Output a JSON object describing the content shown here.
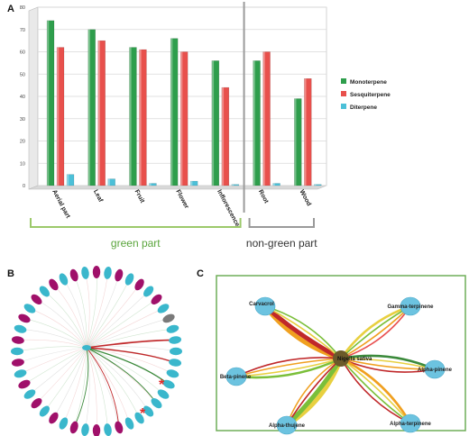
{
  "panels": {
    "a": "A",
    "b": "B",
    "c": "C"
  },
  "chart_data": {
    "type": "bar",
    "categories": [
      "Aerial part",
      "Leaf",
      "Fruit",
      "Flower",
      "Inflorescence",
      "Root",
      "Wood"
    ],
    "series": [
      {
        "name": "Monoterpene",
        "color": "#2e9e4c",
        "values": [
          74,
          70,
          62,
          66,
          56,
          56,
          39
        ]
      },
      {
        "name": "Sesquiterpene",
        "color": "#e8504c",
        "values": [
          62,
          65,
          61,
          60,
          44,
          60,
          48
        ]
      },
      {
        "name": "Diterpene",
        "color": "#4cc0d8",
        "values": [
          5,
          3,
          1,
          2,
          0.5,
          1,
          0.5
        ]
      }
    ],
    "yticks": [
      "0",
      "10",
      "20",
      "30",
      "40",
      "50",
      "60",
      "70",
      "80"
    ],
    "ylim": [
      0,
      80
    ],
    "grid": true,
    "legend_position": "right",
    "groups": [
      {
        "label": "green part",
        "color": "#5aa53c",
        "categories": [
          "Aerial part",
          "Leaf",
          "Fruit",
          "Flower",
          "Inflorescence"
        ]
      },
      {
        "label": "non-green part",
        "color": "#333333",
        "categories": [
          "Root",
          "Wood"
        ]
      }
    ]
  },
  "network_c": {
    "center": "Nigella sativa",
    "nodes": [
      "Carvacrol",
      "Gamma-terpinene",
      "Beta-pinene",
      "Alpha-pinene",
      "Alpha-thujene",
      "Alpha-terpinene"
    ]
  }
}
